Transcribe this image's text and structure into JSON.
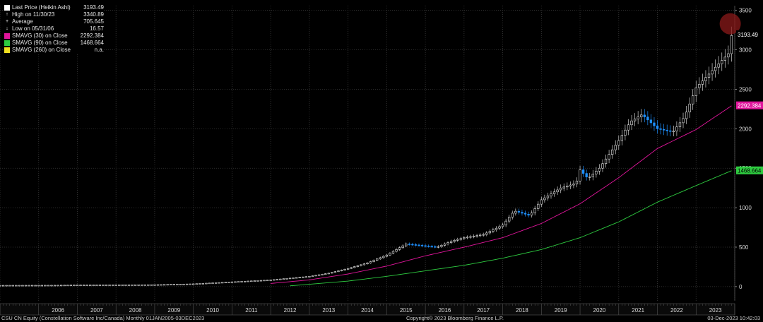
{
  "legend": [
    {
      "label": "Last Price (Heikin Ashi)",
      "value": "3193.49",
      "color": "#ffffff"
    },
    {
      "label": "High on 11/30/23",
      "value": "3340.89",
      "color": "#ffffff",
      "icon": "arrow-up-icon"
    },
    {
      "label": "Average",
      "value": "705.645",
      "color": "#ffffff",
      "icon": "dash-icon"
    },
    {
      "label": "Low on 05/31/06",
      "value": "16.57",
      "color": "#ffffff",
      "icon": "arrow-down-icon"
    },
    {
      "label": "SMAVG (30)  on Close",
      "value": "2292.384",
      "color": "#e0159b"
    },
    {
      "label": "SMAVG (90)  on Close",
      "value": "1468.664",
      "color": "#2ecc40"
    },
    {
      "label": "SMAVG (260)  on Close",
      "value": "n.a.",
      "color": "#f0e020"
    }
  ],
  "footer": {
    "left": "CSU CN Equity (Constellation Software Inc/Canada)  Monthly 01JAN2005-03DEC2023",
    "center": "Copyright© 2023 Bloomberg Finance L.P.",
    "right": "03-Dec-2023 10:42:03"
  },
  "chart_data": {
    "type": "candlestick",
    "y_ticks": [
      0,
      500,
      1000,
      1500,
      2000,
      2500,
      3000,
      3500
    ],
    "ylim": [
      -180,
      3560
    ],
    "x_labels": [
      "2006",
      "2007",
      "2008",
      "2009",
      "2010",
      "2011",
      "2012",
      "2013",
      "2014",
      "2015",
      "2016",
      "2017",
      "2018",
      "2019",
      "2020",
      "2021",
      "2022",
      "2023"
    ],
    "x_range": [
      "2005-01",
      "2023-12"
    ],
    "last_price_label": "3193.49",
    "sma30_label": "2292.384",
    "sma90_label": "1468.664",
    "highlight": "circle at latest high",
    "colors": {
      "up": "#ffffff",
      "down": "#1e90ff",
      "sma30": "#e0159b",
      "sma90": "#2ecc40",
      "grid": "#3a3a3a",
      "highlight": "#8b1a1a"
    },
    "series": [
      {
        "name": "Last Price (Heikin Ashi)",
        "anchors": [
          [
            2005.0,
            16
          ],
          [
            2006.4,
            17
          ],
          [
            2007.0,
            20
          ],
          [
            2008.0,
            22
          ],
          [
            2009.0,
            24
          ],
          [
            2010.0,
            35
          ],
          [
            2011.0,
            60
          ],
          [
            2012.0,
            85
          ],
          [
            2013.0,
            130
          ],
          [
            2013.5,
            170
          ],
          [
            2014.0,
            230
          ],
          [
            2014.5,
            300
          ],
          [
            2015.0,
            400
          ],
          [
            2015.5,
            540
          ],
          [
            2015.9,
            520
          ],
          [
            2016.3,
            500
          ],
          [
            2016.7,
            580
          ],
          [
            2017.0,
            620
          ],
          [
            2017.5,
            660
          ],
          [
            2018.0,
            780
          ],
          [
            2018.3,
            960
          ],
          [
            2018.7,
            900
          ],
          [
            2019.0,
            1100
          ],
          [
            2019.5,
            1250
          ],
          [
            2019.9,
            1310
          ],
          [
            2020.0,
            1480
          ],
          [
            2020.2,
            1370
          ],
          [
            2020.5,
            1500
          ],
          [
            2021.0,
            1850
          ],
          [
            2021.3,
            2090
          ],
          [
            2021.6,
            2180
          ],
          [
            2022.0,
            2000
          ],
          [
            2022.4,
            1960
          ],
          [
            2022.7,
            2150
          ],
          [
            2023.0,
            2520
          ],
          [
            2023.5,
            2780
          ],
          [
            2023.85,
            2960
          ],
          [
            2023.92,
            3193
          ]
        ]
      },
      {
        "name": "SMAVG (30) on Close",
        "anchors": [
          [
            2012.0,
            40
          ],
          [
            2013.0,
            85
          ],
          [
            2014.0,
            160
          ],
          [
            2015.0,
            260
          ],
          [
            2016.0,
            390
          ],
          [
            2017.0,
            500
          ],
          [
            2018.0,
            620
          ],
          [
            2019.0,
            800
          ],
          [
            2020.0,
            1050
          ],
          [
            2021.0,
            1380
          ],
          [
            2022.0,
            1750
          ],
          [
            2023.0,
            1990
          ],
          [
            2023.92,
            2292
          ]
        ]
      },
      {
        "name": "SMAVG (90) on Close",
        "anchors": [
          [
            2012.5,
            10
          ],
          [
            2013.0,
            30
          ],
          [
            2014.0,
            70
          ],
          [
            2015.0,
            130
          ],
          [
            2016.0,
            200
          ],
          [
            2017.0,
            270
          ],
          [
            2018.0,
            360
          ],
          [
            2019.0,
            470
          ],
          [
            2020.0,
            620
          ],
          [
            2021.0,
            820
          ],
          [
            2022.0,
            1070
          ],
          [
            2023.0,
            1280
          ],
          [
            2023.92,
            1469
          ]
        ]
      }
    ]
  }
}
